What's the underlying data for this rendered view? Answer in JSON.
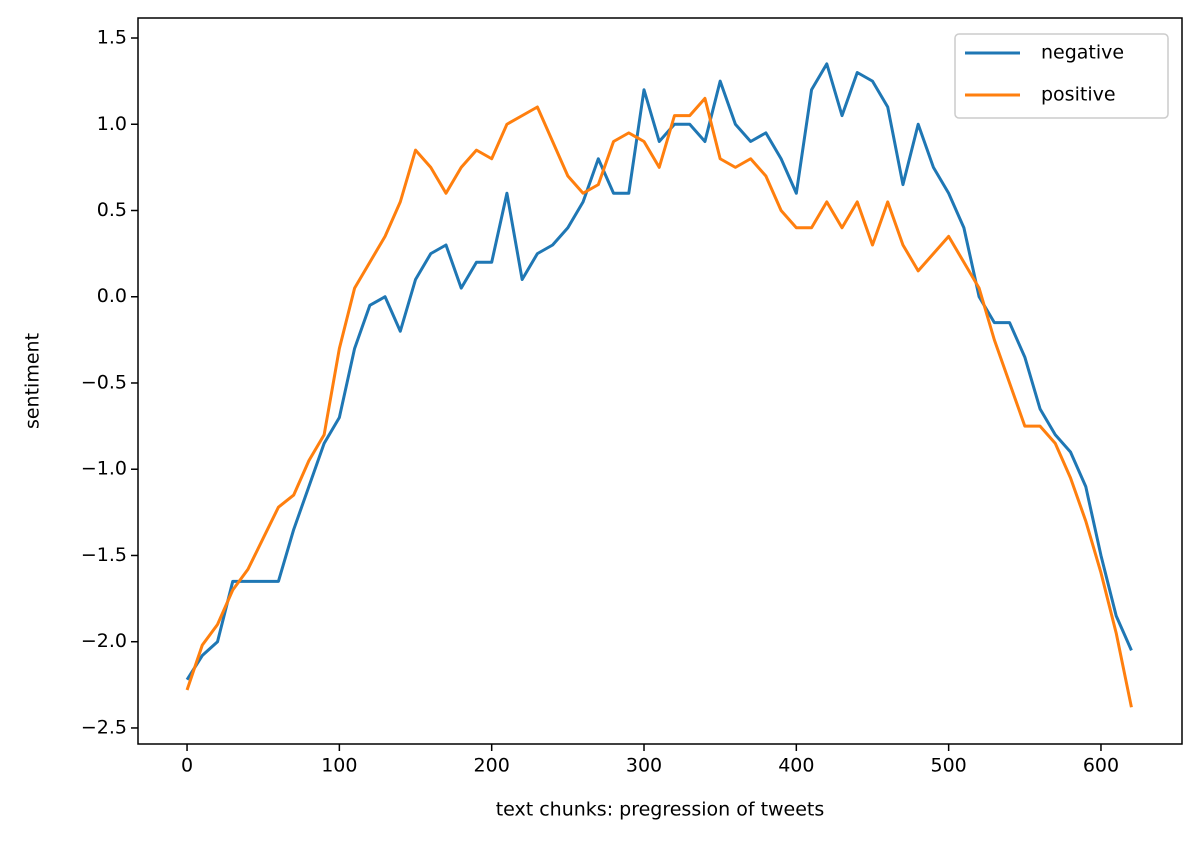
{
  "chart_data": {
    "type": "line",
    "xlabel": "text chunks: pregression of tweets",
    "ylabel": "sentiment",
    "x": [
      0,
      10,
      20,
      30,
      40,
      50,
      60,
      70,
      80,
      90,
      100,
      110,
      120,
      130,
      140,
      150,
      160,
      170,
      180,
      190,
      200,
      210,
      220,
      230,
      240,
      250,
      260,
      270,
      280,
      290,
      300,
      310,
      320,
      330,
      340,
      350,
      360,
      370,
      380,
      390,
      400,
      410,
      420,
      430,
      440,
      450,
      460,
      470,
      480,
      490,
      500,
      510,
      520,
      530,
      540,
      550,
      560,
      570,
      580,
      590,
      600,
      610,
      620
    ],
    "series": [
      {
        "name": "negative",
        "color": "#1f77b4",
        "values": [
          -2.22,
          -2.08,
          -2.0,
          -1.65,
          -1.65,
          -1.65,
          -1.65,
          -1.35,
          -1.1,
          -0.85,
          -0.7,
          -0.3,
          -0.05,
          0.0,
          -0.2,
          0.1,
          0.25,
          0.3,
          0.05,
          0.2,
          0.2,
          0.6,
          0.1,
          0.25,
          0.3,
          0.4,
          0.55,
          0.8,
          0.6,
          0.6,
          1.2,
          0.9,
          1.0,
          1.0,
          0.9,
          1.25,
          1.0,
          0.9,
          0.95,
          0.8,
          0.6,
          1.2,
          1.35,
          1.05,
          1.3,
          1.25,
          1.1,
          0.65,
          1.0,
          0.75,
          0.6,
          0.4,
          0.0,
          -0.15,
          -0.15,
          -0.35,
          -0.65,
          -0.8,
          -0.9,
          -1.1,
          -1.5,
          -1.85,
          -2.05
        ]
      },
      {
        "name": "positive",
        "color": "#ff7f0e",
        "values": [
          -2.28,
          -2.02,
          -1.9,
          -1.7,
          -1.58,
          -1.4,
          -1.22,
          -1.15,
          -0.95,
          -0.8,
          -0.3,
          0.05,
          0.2,
          0.35,
          0.55,
          0.85,
          0.75,
          0.6,
          0.75,
          0.85,
          0.8,
          1.0,
          1.05,
          1.1,
          0.9,
          0.7,
          0.6,
          0.65,
          0.9,
          0.95,
          0.9,
          0.75,
          1.05,
          1.05,
          1.15,
          0.8,
          0.75,
          0.8,
          0.7,
          0.5,
          0.4,
          0.4,
          0.55,
          0.4,
          0.55,
          0.3,
          0.55,
          0.3,
          0.15,
          0.25,
          0.35,
          0.2,
          0.05,
          -0.25,
          -0.5,
          -0.75,
          -0.75,
          -0.85,
          -1.05,
          -1.3,
          -1.6,
          -1.95,
          -2.38
        ]
      }
    ],
    "xlim": [
      -32.2,
      653.2
    ],
    "ylim": [
      -2.593,
      1.616
    ],
    "xticks": [
      0,
      100,
      200,
      300,
      400,
      500,
      600
    ],
    "yticks": [
      {
        "value": -2.5,
        "label": "−2.5"
      },
      {
        "value": -2.0,
        "label": "−2.0"
      },
      {
        "value": -1.5,
        "label": "−1.5"
      },
      {
        "value": -1.0,
        "label": "−1.0"
      },
      {
        "value": -0.5,
        "label": "−0.5"
      },
      {
        "value": 0.0,
        "label": "0.0"
      },
      {
        "value": 0.5,
        "label": "0.5"
      },
      {
        "value": 1.0,
        "label": "1.0"
      },
      {
        "value": 1.5,
        "label": "1.5"
      }
    ],
    "legend": "upper right"
  }
}
